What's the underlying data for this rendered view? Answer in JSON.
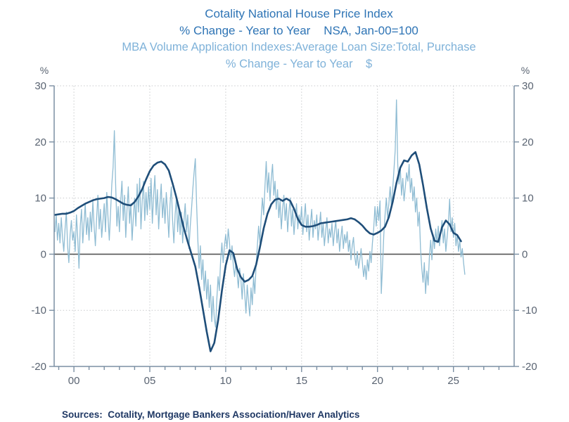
{
  "header": {
    "title_line1": "Cotality National House Price Index",
    "title_line2": "% Change - Year to Year    NSA, Jan-00=100",
    "subtitle_line1": "MBA Volume Application Indexes:Average Loan Size:Total, Purchase",
    "subtitle_line2": "% Change - Year to Year    $"
  },
  "footer": {
    "sources": "Sources:  Cotality, Mortgage Bankers Association/Haver Analytics"
  },
  "colors": {
    "title": "#2E74B5",
    "subtitle": "#7FB2D9",
    "hpi_line": "#1F4E79",
    "mba_line": "#8FBCD3",
    "axis": "#7B8FA3",
    "tick_label": "#5A6472",
    "zero_line": "#555555",
    "grid": "#C8CACC",
    "sources": "#1F3864"
  },
  "chart_data": {
    "type": "line",
    "title": "Cotality National House Price Index vs MBA Average Loan Size (Total, Purchase)",
    "ylabel": "%",
    "x_axis": {
      "range": [
        1998.7,
        2029.0
      ],
      "major_ticks": [
        2000,
        2005,
        2010,
        2015,
        2020,
        2025
      ],
      "tick_labels": [
        "00",
        "05",
        "10",
        "15",
        "20",
        "25"
      ],
      "minor_tick_step": 1
    },
    "y_axis": {
      "range": [
        -20,
        30
      ],
      "ticks": [
        30,
        20,
        10,
        0,
        -10,
        -20
      ],
      "gridlines": [
        30,
        20,
        10,
        -10
      ],
      "unit": "%",
      "zero_line": true
    },
    "series": [
      {
        "name": "MBA Volume Application Indexes: Average Loan Size: Total, Purchase, % Change - Year to Year",
        "color_key": "mba_line",
        "width": 1.3,
        "start": 1998.75,
        "step": 0.0833333,
        "values": [
          4.0,
          7.0,
          2.5,
          5.5,
          2.0,
          6.5,
          3.0,
          0.5,
          4.5,
          7.5,
          1.5,
          -1.5,
          3.5,
          6.0,
          2.5,
          4.0,
          0.5,
          7.0,
          3.0,
          -2.5,
          5.0,
          8.0,
          2.0,
          5.5,
          9.0,
          3.5,
          6.5,
          2.5,
          7.5,
          4.0,
          9.5,
          5.0,
          1.5,
          6.5,
          10.5,
          4.5,
          8.0,
          3.0,
          6.0,
          9.0,
          4.0,
          11.0,
          6.5,
          2.5,
          7.5,
          12.5,
          15.5,
          22.0,
          12.5,
          5.0,
          8.5,
          4.0,
          9.5,
          13.0,
          6.0,
          10.5,
          3.0,
          8.0,
          12.0,
          5.5,
          9.0,
          2.5,
          6.5,
          10.0,
          5.0,
          12.5,
          7.5,
          13.5,
          4.5,
          9.5,
          13.0,
          6.0,
          11.0,
          7.0,
          12.0,
          8.0,
          13.5,
          5.5,
          10.5,
          14.0,
          7.0,
          11.5,
          4.5,
          9.0,
          12.5,
          6.5,
          10.0,
          5.5,
          11.0,
          7.5,
          3.0,
          9.0,
          12.0,
          6.0,
          2.0,
          7.0,
          10.0,
          4.0,
          8.0,
          3.5,
          7.5,
          2.0,
          6.0,
          9.0,
          4.0,
          7.0,
          1.0,
          5.0,
          8.0,
          11.5,
          14.5,
          17.0,
          9.0,
          2.5,
          -2.5,
          1.5,
          -4.5,
          -1.0,
          -6.5,
          -3.0,
          -8.0,
          -4.5,
          -9.5,
          -5.5,
          -12.0,
          -7.5,
          -11.5,
          -13.0,
          -8.0,
          -4.0,
          -6.5,
          -1.0,
          2.0,
          -1.5,
          1.5,
          3.5,
          1.0,
          4.5,
          2.0,
          -1.0,
          1.5,
          -2.0,
          -4.0,
          -1.5,
          -3.5,
          -6.0,
          -2.5,
          -4.5,
          -8.0,
          -3.5,
          -7.0,
          -10.5,
          -5.5,
          -8.5,
          -11.0,
          -6.0,
          -9.0,
          -4.0,
          -7.0,
          -2.0,
          1.5,
          5.0,
          2.0,
          6.5,
          10.0,
          7.0,
          12.0,
          16.5,
          11.0,
          14.5,
          9.5,
          13.5,
          16.0,
          10.5,
          13.0,
          8.0,
          11.5,
          6.5,
          9.5,
          4.5,
          8.0,
          10.5,
          6.0,
          9.0,
          4.0,
          7.5,
          10.0,
          5.0,
          8.0,
          3.5,
          6.5,
          9.0,
          4.5,
          7.0,
          5.5,
          8.5,
          3.5,
          6.5,
          9.0,
          4.0,
          7.0,
          2.5,
          5.5,
          8.0,
          3.0,
          6.0,
          4.5,
          7.0,
          2.5,
          5.0,
          7.5,
          3.0,
          5.5,
          1.5,
          4.0,
          6.5,
          2.0,
          4.5,
          3.0,
          5.5,
          1.5,
          4.0,
          6.0,
          2.0,
          4.5,
          0.5,
          3.0,
          5.0,
          1.0,
          3.5,
          2.0,
          4.0,
          0.5,
          2.5,
          -1.0,
          1.5,
          3.0,
          -0.5,
          -2.0,
          0.5,
          -2.5,
          -1.0,
          1.0,
          -1.5,
          -4.0,
          -2.0,
          -4.5,
          -1.0,
          -3.0,
          0.5,
          -1.5,
          2.0,
          4.5,
          8.5,
          5.0,
          8.5,
          6.0,
          9.5,
          -7.0,
          -2.0,
          3.5,
          7.0,
          10.0,
          6.5,
          9.0,
          12.0,
          8.5,
          11.5,
          15.0,
          18.5,
          27.5,
          16.0,
          12.5,
          15.5,
          10.5,
          13.5,
          9.5,
          12.0,
          14.5,
          13.0,
          16.0,
          11.0,
          13.5,
          9.5,
          12.0,
          7.5,
          10.0,
          5.0,
          7.5,
          1.0,
          -2.5,
          -5.0,
          -1.5,
          -7.0,
          -3.0,
          -5.5,
          -0.5,
          2.5,
          -1.0,
          3.5,
          1.0,
          4.5,
          2.0,
          5.0,
          1.5,
          4.0,
          6.0,
          2.0,
          4.5,
          0.5,
          3.0,
          5.5,
          9.8,
          4.0,
          6.5,
          3.0,
          5.5,
          1.5,
          3.5,
          0.5,
          2.5,
          -0.5,
          1.0,
          -1.5,
          -3.6
        ]
      },
      {
        "name": "Cotality National House Price Index, % Change - Year to Year, NSA Jan-00=100",
        "color_key": "hpi_line",
        "width": 2.6,
        "start": 1998.75,
        "step": 0.25,
        "values": [
          7.0,
          7.1,
          7.2,
          7.2,
          7.4,
          7.7,
          8.2,
          8.6,
          9.0,
          9.3,
          9.6,
          9.8,
          9.9,
          10.0,
          10.2,
          10.1,
          9.8,
          9.4,
          9.0,
          8.8,
          8.7,
          9.3,
          10.3,
          11.6,
          13.3,
          14.8,
          15.8,
          16.3,
          16.5,
          16.0,
          14.9,
          12.6,
          10.1,
          7.3,
          4.6,
          2.2,
          0.0,
          -2.2,
          -5.8,
          -9.8,
          -13.8,
          -17.3,
          -15.8,
          -11.8,
          -6.5,
          -2.0,
          0.7,
          0.2,
          -2.6,
          -4.1,
          -4.9,
          -4.6,
          -3.9,
          -1.9,
          1.2,
          4.6,
          7.2,
          8.9,
          9.7,
          9.9,
          9.5,
          9.9,
          9.5,
          8.1,
          6.3,
          5.2,
          4.9,
          4.9,
          5.0,
          5.2,
          5.5,
          5.6,
          5.7,
          5.8,
          5.9,
          6.0,
          6.1,
          6.2,
          6.4,
          6.2,
          5.7,
          5.1,
          4.3,
          3.7,
          3.5,
          3.8,
          4.2,
          4.9,
          6.6,
          9.3,
          12.7,
          15.4,
          16.7,
          16.5,
          17.6,
          18.2,
          16.0,
          12.3,
          8.2,
          4.6,
          2.4,
          2.2,
          4.8,
          6.0,
          5.3,
          3.8,
          3.4,
          2.3
        ]
      }
    ]
  }
}
